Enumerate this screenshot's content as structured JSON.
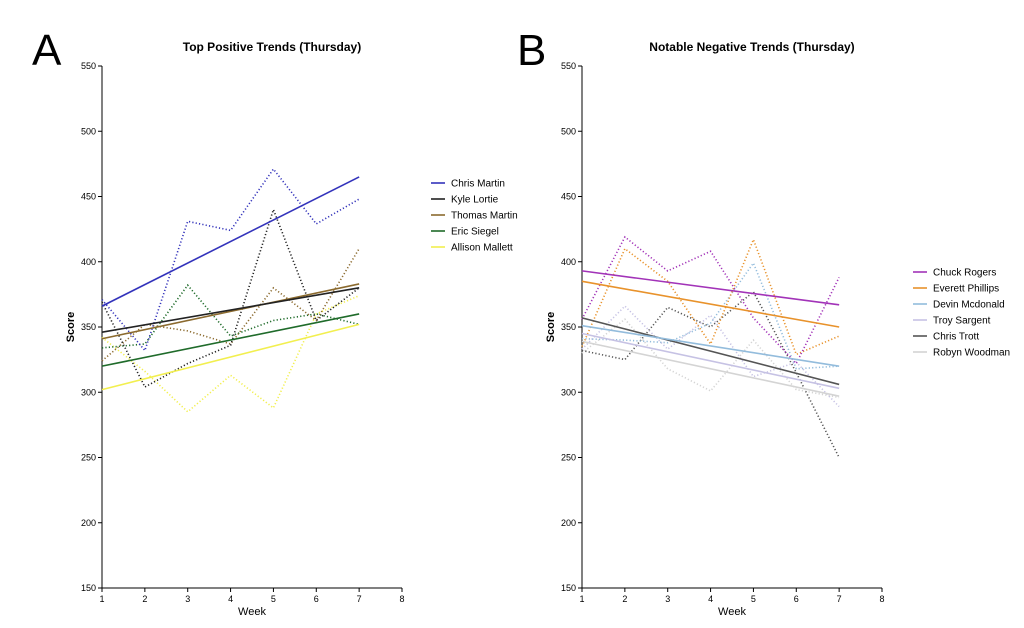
{
  "chart_data": [
    {
      "panel": "A",
      "type": "line",
      "title": "Top Positive Trends (Thursday)",
      "xlabel": "Week",
      "ylabel": "Score",
      "xlim": [
        1,
        8
      ],
      "ylim": [
        150,
        550
      ],
      "xticks": [
        "1",
        "2",
        "3",
        "4",
        "5",
        "6",
        "7",
        "8"
      ],
      "yticks": [
        "150",
        "200",
        "250",
        "300",
        "350",
        "400",
        "450",
        "500",
        "550"
      ],
      "legend_position": "right",
      "series": [
        {
          "name": "Chris Martin",
          "color": "#3333bb",
          "raw": [
            371,
            332,
            431,
            424,
            471,
            429,
            448
          ],
          "trend": [
            366,
            465
          ]
        },
        {
          "name": "Kyle Lortie",
          "color": "#222222",
          "raw": [
            369,
            304,
            322,
            336,
            440,
            355,
            380
          ],
          "trend": [
            346,
            380
          ]
        },
        {
          "name": "Thomas Martin",
          "color": "#8b6a2e",
          "raw": [
            324,
            352,
            347,
            337,
            380,
            355,
            410
          ],
          "trend": [
            341,
            383
          ]
        },
        {
          "name": "Eric Siegel",
          "color": "#1f6b2a",
          "raw": [
            334,
            337,
            382,
            343,
            355,
            360,
            352
          ],
          "trend": [
            320,
            360
          ]
        },
        {
          "name": "Allison Mallett",
          "color": "#f2ef4f",
          "raw": [
            342,
            316,
            285,
            313,
            288,
            360,
            374
          ],
          "trend": [
            302,
            352
          ]
        }
      ]
    },
    {
      "panel": "B",
      "type": "line",
      "title": "Notable Negative Trends (Thursday)",
      "xlabel": "Week",
      "ylabel": "Score",
      "xlim": [
        1,
        8
      ],
      "ylim": [
        150,
        550
      ],
      "xticks": [
        "1",
        "2",
        "3",
        "4",
        "5",
        "6",
        "7",
        "8"
      ],
      "yticks": [
        "150",
        "200",
        "250",
        "300",
        "350",
        "400",
        "450",
        "500",
        "550"
      ],
      "legend_position": "right",
      "series": [
        {
          "name": "Chuck Rogers",
          "color": "#a233b8",
          "raw": [
            356,
            419,
            393,
            408,
            357,
            322,
            388
          ],
          "trend": [
            393,
            367
          ]
        },
        {
          "name": "Everett Phillips",
          "color": "#e8922b",
          "raw": [
            335,
            410,
            385,
            337,
            417,
            329,
            343
          ],
          "trend": [
            385,
            350
          ]
        },
        {
          "name": "Devin Mcdonald",
          "color": "#93bcdc",
          "raw": [
            341,
            340,
            338,
            353,
            399,
            318,
            320
          ],
          "trend": [
            351,
            320
          ]
        },
        {
          "name": "Troy Sargent",
          "color": "#c6c2e4",
          "raw": [
            333,
            366,
            333,
            359,
            312,
            323,
            289
          ],
          "trend": [
            345,
            303
          ]
        },
        {
          "name": "Chris Trott",
          "color": "#555555",
          "raw": [
            332,
            325,
            365,
            350,
            377,
            315,
            250
          ],
          "trend": [
            357,
            306
          ]
        },
        {
          "name": "Robyn Woodman",
          "color": "#d4d4d4",
          "raw": [
            330,
            356,
            318,
            301,
            340,
            302,
            296
          ],
          "trend": [
            339,
            297
          ]
        }
      ]
    }
  ]
}
